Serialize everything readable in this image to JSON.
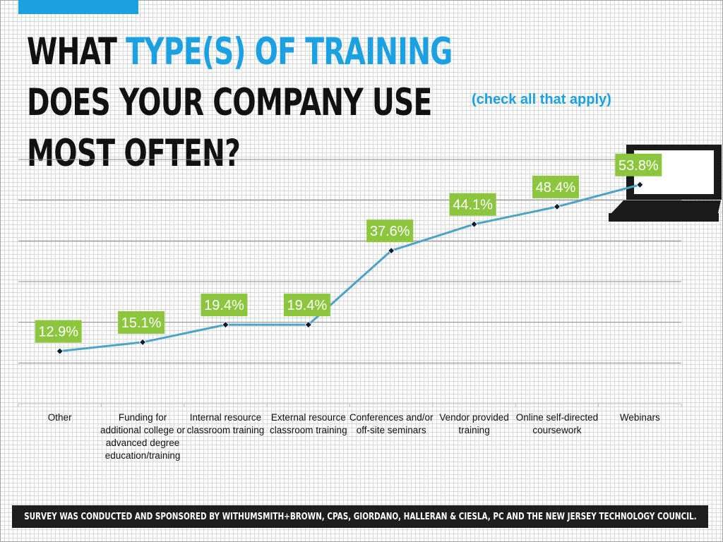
{
  "title": {
    "part1": "WHAT ",
    "highlight": "TYPE(S) OF TRAINING",
    "part2": " DOES YOUR COMPANY USE MOST OFTEN?"
  },
  "subtitle": "(check all that apply)",
  "footer": "SURVEY WAS CONDUCTED AND SPONSORED BY WITHUMSMITH+BROWN, CPAS, GIORDANO, HALLERAN & CIESLA, PC AND THE NEW JERSEY TECHNOLOGY COUNCIL.",
  "colors": {
    "accent": "#1ba1e2",
    "label_bg": "#8cc63f",
    "line": "#4ba3c7",
    "marker": "#0d1b2a",
    "gridline": "#8a8a8a",
    "laptop": "#1a1a1a"
  },
  "icons": [
    "laptop-icon"
  ],
  "chart_data": {
    "type": "line",
    "categories": [
      [
        "Other"
      ],
      [
        "Funding for",
        "additional college or",
        "advanced degree",
        "education/training"
      ],
      [
        "Internal resource",
        "classroom training"
      ],
      [
        "External resource",
        "classroom training"
      ],
      [
        "Conferences and/or",
        "off-site seminars"
      ],
      [
        "Vendor provided",
        "training"
      ],
      [
        "Online self-directed",
        "coursework"
      ],
      [
        "Webinars"
      ]
    ],
    "values": [
      12.9,
      15.1,
      19.4,
      19.4,
      37.6,
      44.1,
      48.4,
      53.8
    ],
    "data_labels": [
      "12.9%",
      "15.1%",
      "19.4%",
      "19.4%",
      "37.6%",
      "44.1%",
      "48.4%",
      "53.8%"
    ],
    "ylim": [
      0,
      60
    ],
    "gridlines": [
      10,
      20,
      30,
      40,
      50,
      60
    ],
    "grid": true,
    "legend": "none"
  }
}
